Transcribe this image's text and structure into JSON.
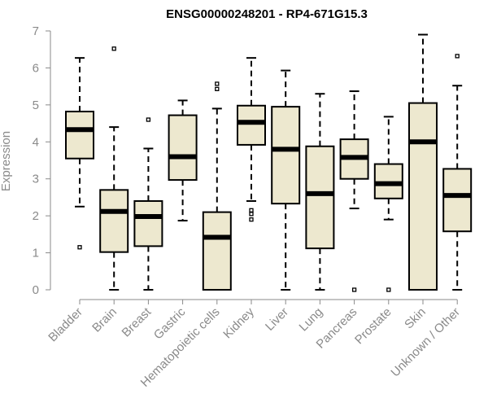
{
  "chart_data": {
    "type": "box",
    "title": "ENSG00000248201 - RP4-671G15.3",
    "xlabel": "",
    "ylabel": "Expression",
    "ylim": [
      0,
      7
    ],
    "yticks": [
      0,
      1,
      2,
      3,
      4,
      5,
      6,
      7
    ],
    "categories": [
      "Bladder",
      "Brain",
      "Breast",
      "Gastric",
      "Hematopoietic cells",
      "Kidney",
      "Liver",
      "Lung",
      "Pancreas",
      "Prostate",
      "Skin",
      "Unknown / Other"
    ],
    "boxes": [
      {
        "whisker_low": 2.25,
        "q1": 3.55,
        "median": 4.33,
        "q3": 4.82,
        "whisker_high": 6.27,
        "outliers": [
          1.15
        ]
      },
      {
        "whisker_low": 0.0,
        "q1": 1.02,
        "median": 2.12,
        "q3": 2.7,
        "whisker_high": 4.4,
        "outliers": [
          6.52
        ]
      },
      {
        "whisker_low": 0.0,
        "q1": 1.18,
        "median": 1.98,
        "q3": 2.4,
        "whisker_high": 3.82,
        "outliers": [
          4.6
        ]
      },
      {
        "whisker_low": 1.87,
        "q1": 2.97,
        "median": 3.6,
        "q3": 4.72,
        "whisker_high": 5.12,
        "outliers": []
      },
      {
        "whisker_low": 0.0,
        "q1": 0.0,
        "median": 1.42,
        "q3": 2.1,
        "whisker_high": 4.9,
        "outliers": [
          5.43,
          5.57
        ]
      },
      {
        "whisker_low": 2.4,
        "q1": 3.92,
        "median": 4.53,
        "q3": 4.98,
        "whisker_high": 6.27,
        "outliers": [
          1.9,
          2.05,
          2.15
        ]
      },
      {
        "whisker_low": 0.0,
        "q1": 2.33,
        "median": 3.8,
        "q3": 4.95,
        "whisker_high": 5.93,
        "outliers": []
      },
      {
        "whisker_low": 0.0,
        "q1": 1.12,
        "median": 2.6,
        "q3": 3.88,
        "whisker_high": 5.3,
        "outliers": []
      },
      {
        "whisker_low": 2.2,
        "q1": 3.0,
        "median": 3.58,
        "q3": 4.07,
        "whisker_high": 5.37,
        "outliers": [
          0.0
        ]
      },
      {
        "whisker_low": 1.9,
        "q1": 2.47,
        "median": 2.87,
        "q3": 3.4,
        "whisker_high": 4.68,
        "outliers": [
          0.0
        ]
      },
      {
        "whisker_low": 0.0,
        "q1": 0.0,
        "median": 4.0,
        "q3": 5.05,
        "whisker_high": 6.9,
        "outliers": []
      },
      {
        "whisker_low": 0.0,
        "q1": 1.58,
        "median": 2.55,
        "q3": 3.27,
        "whisker_high": 5.52,
        "outliers": [
          6.32
        ]
      }
    ],
    "box_fill": "#ede8cf",
    "grid": false,
    "legend": "none"
  }
}
